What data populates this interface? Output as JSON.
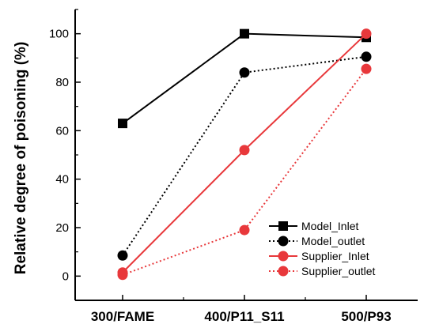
{
  "chart_data": {
    "type": "line",
    "title": "",
    "xlabel": "",
    "ylabel": "Relative degree of poisoning (%)",
    "categories": [
      "300/FAME",
      "400/P11_S11",
      "500/P93"
    ],
    "ylim": [
      -10,
      110
    ],
    "yticks": [
      0,
      20,
      40,
      60,
      80,
      100
    ],
    "grid": false,
    "legend_position": "bottom-right",
    "series": [
      {
        "name": "Model_Inlet",
        "values": [
          63,
          100,
          98.5
        ],
        "color": "#000000",
        "marker": "square",
        "line_style": "solid"
      },
      {
        "name": "Model_outlet",
        "values": [
          8.5,
          84,
          90.5
        ],
        "color": "#000000",
        "marker": "circle",
        "line_style": "dotted"
      },
      {
        "name": "Supplier_Inlet",
        "values": [
          1.5,
          52,
          100
        ],
        "color": "#e8383b",
        "marker": "circle",
        "line_style": "solid"
      },
      {
        "name": "Supplier_outlet",
        "values": [
          0.5,
          19,
          85.5
        ],
        "color": "#e8383b",
        "marker": "circle",
        "line_style": "dotted"
      }
    ]
  }
}
